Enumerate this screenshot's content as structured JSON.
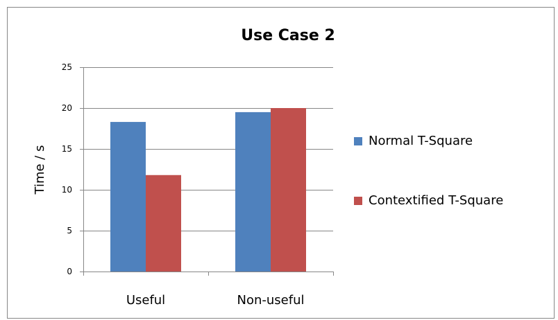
{
  "chart_data": {
    "type": "bar",
    "title": "Use Case 2",
    "y_label": "Time / s",
    "categories": [
      "Useful",
      "Non-useful"
    ],
    "series": [
      {
        "name": "Normal T-Square",
        "color": "#4f81bd",
        "values": [
          18.3,
          19.5
        ]
      },
      {
        "name": "Contextified T-Square",
        "color": "#c0504d",
        "values": [
          11.8,
          20.0
        ]
      }
    ],
    "ylim": [
      0,
      25
    ],
    "yticks": [
      0,
      5,
      10,
      15,
      20,
      25
    ],
    "grid": true,
    "legend": "right"
  }
}
